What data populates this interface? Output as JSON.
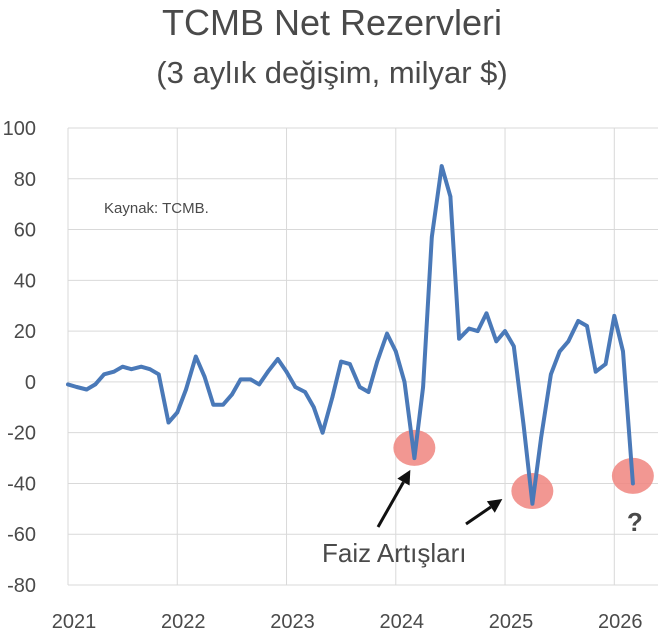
{
  "chart_data": {
    "type": "line",
    "title": "TCMB Net Rezervleri",
    "subtitle": "(3 aylık değişim, milyar $)",
    "xlabel": "",
    "ylabel": "",
    "ylim": [
      -80,
      100
    ],
    "yticks": [
      "100",
      "80",
      "60",
      "40",
      "20",
      "0",
      "-20",
      "-40",
      "-60",
      "-80"
    ],
    "ytick_values": [
      100,
      80,
      60,
      40,
      20,
      0,
      -20,
      -40,
      -60,
      -80
    ],
    "xlim": [
      2021,
      2026.4
    ],
    "xticks": [
      "2021",
      "2022",
      "2023",
      "2024",
      "2025",
      "2026"
    ],
    "xtick_values": [
      2021,
      2022,
      2023,
      2024,
      2025,
      2026
    ],
    "grid": true,
    "series_color": "#4a79b8",
    "highlight_color": "#f0857f",
    "question_color": "#d93a2b",
    "series": [
      {
        "points": [
          [
            2021.0,
            -1
          ],
          [
            2021.08,
            -2
          ],
          [
            2021.17,
            -3
          ],
          [
            2021.25,
            -1
          ],
          [
            2021.33,
            3
          ],
          [
            2021.42,
            4
          ],
          [
            2021.5,
            6
          ],
          [
            2021.58,
            5
          ],
          [
            2021.67,
            6
          ],
          [
            2021.75,
            5
          ],
          [
            2021.83,
            3
          ],
          [
            2021.92,
            -16
          ],
          [
            2022.0,
            -12
          ],
          [
            2022.08,
            -3
          ],
          [
            2022.17,
            10
          ],
          [
            2022.25,
            2
          ],
          [
            2022.33,
            -9
          ],
          [
            2022.42,
            -9
          ],
          [
            2022.5,
            -5
          ],
          [
            2022.58,
            1
          ],
          [
            2022.67,
            1
          ],
          [
            2022.75,
            -1
          ],
          [
            2022.83,
            4
          ],
          [
            2022.92,
            9
          ],
          [
            2023.0,
            4
          ],
          [
            2023.08,
            -2
          ],
          [
            2023.17,
            -4
          ],
          [
            2023.25,
            -10
          ],
          [
            2023.33,
            -20
          ],
          [
            2023.42,
            -6
          ],
          [
            2023.5,
            8
          ],
          [
            2023.58,
            7
          ],
          [
            2023.67,
            -2
          ],
          [
            2023.75,
            -4
          ],
          [
            2023.83,
            8
          ],
          [
            2023.92,
            19
          ],
          [
            2024.0,
            12
          ],
          [
            2024.08,
            0
          ],
          [
            2024.17,
            -30
          ],
          [
            2024.25,
            -2
          ],
          [
            2024.33,
            57
          ],
          [
            2024.42,
            85
          ],
          [
            2024.5,
            73
          ],
          [
            2024.58,
            17
          ],
          [
            2024.67,
            21
          ],
          [
            2024.75,
            20
          ],
          [
            2024.83,
            27
          ],
          [
            2024.92,
            16
          ],
          [
            2025.0,
            20
          ],
          [
            2025.08,
            14
          ],
          [
            2025.17,
            -17
          ],
          [
            2025.25,
            -48
          ],
          [
            2025.33,
            -22
          ],
          [
            2025.42,
            3
          ],
          [
            2025.5,
            12
          ],
          [
            2025.58,
            16
          ],
          [
            2025.67,
            24
          ],
          [
            2025.75,
            22
          ],
          [
            2025.83,
            4
          ],
          [
            2025.92,
            7
          ],
          [
            2026.0,
            26
          ],
          [
            2026.08,
            12
          ],
          [
            2026.17,
            -40
          ]
        ]
      }
    ],
    "highlights": [
      {
        "x": 2024.17,
        "y": -26
      },
      {
        "x": 2025.25,
        "y": -43
      },
      {
        "x": 2026.17,
        "y": -37
      }
    ],
    "annotations": {
      "source": "Kaynak: TCMB.",
      "label": "Faiz Artışları",
      "question": "?"
    }
  }
}
